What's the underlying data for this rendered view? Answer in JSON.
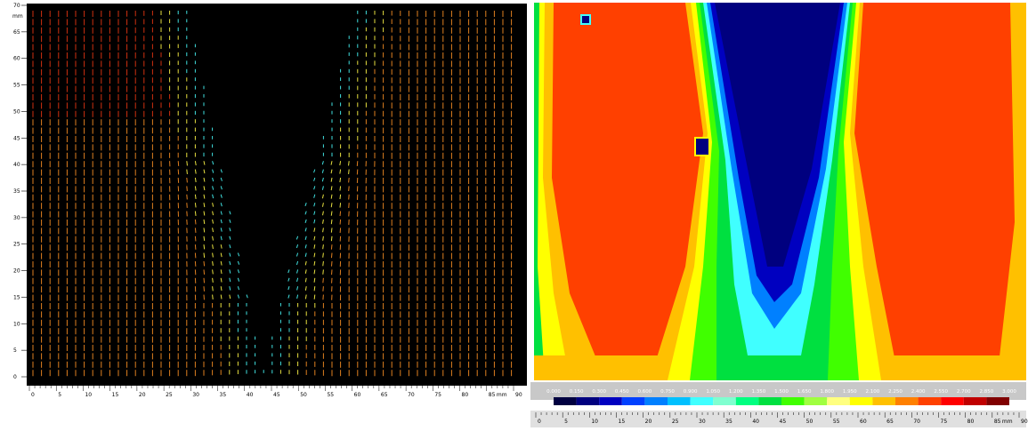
{
  "left_panel": {
    "y_axis": {
      "unit": "mm",
      "ticks": [
        "0",
        "5",
        "10",
        "15",
        "20",
        "25",
        "30",
        "35",
        "40",
        "45",
        "50",
        "55",
        "60",
        "65",
        "70"
      ]
    },
    "x_axis": {
      "unit": "mm",
      "ticks": [
        "0",
        "5",
        "10",
        "15",
        "20",
        "25",
        "30",
        "35",
        "40",
        "45",
        "50",
        "55",
        "60",
        "65",
        "70",
        "75",
        "80",
        "85",
        "90"
      ]
    }
  },
  "right_panel": {
    "colorbar": {
      "labels": [
        "0.000",
        "0.150",
        "0.300",
        "0.450",
        "0.600",
        "0.750",
        "0.900",
        "1.050",
        "1.200",
        "1.350",
        "1.500",
        "1.650",
        "1.800",
        "1.950",
        "2.100",
        "2.250",
        "2.400",
        "2.550",
        "2.700",
        "2.850",
        "3.000"
      ],
      "colors": [
        "#000040",
        "#00007f",
        "#0000c0",
        "#0040ff",
        "#0080ff",
        "#00c0ff",
        "#40ffff",
        "#80ffd0",
        "#00ff80",
        "#00e040",
        "#40ff00",
        "#a0ff40",
        "#ffff80",
        "#ffff00",
        "#ffc000",
        "#ff8000",
        "#ff4000",
        "#ff0000",
        "#c00000",
        "#800000"
      ]
    },
    "x_axis": {
      "unit": "mm",
      "ticks": [
        "0",
        "5",
        "10",
        "15",
        "20",
        "25",
        "30",
        "35",
        "40",
        "45",
        "50",
        "55",
        "60",
        "65",
        "70",
        "75",
        "80",
        "85",
        "90"
      ]
    }
  }
}
